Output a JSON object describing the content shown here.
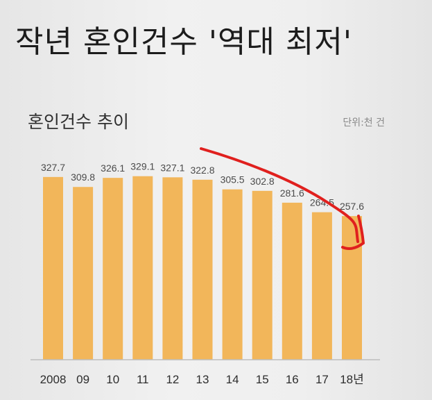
{
  "headline": "작년 혼인건수 '역대 최저'",
  "subtitle": "혼인건수 추이",
  "unit": "단위:천 건",
  "colors": {
    "bar": "#f2b65a",
    "axis": "#bdbdbd",
    "annotation": "#e0201e"
  },
  "chart_data": {
    "type": "bar",
    "title": "혼인건수 추이",
    "categories": [
      "2008",
      "09",
      "10",
      "11",
      "12",
      "13",
      "14",
      "15",
      "16",
      "17",
      "18년"
    ],
    "values": [
      327.7,
      309.8,
      326.1,
      329.1,
      327.1,
      322.8,
      305.5,
      302.8,
      281.6,
      264.5,
      257.6
    ],
    "value_labels": [
      "327.7",
      "309.8",
      "326.1",
      "329.1",
      "327.1",
      "322.8",
      "305.5",
      "302.8",
      "281.6",
      "264.5",
      "257.6"
    ],
    "ylim": [
      0,
      330
    ],
    "grid": false,
    "annotation": "hand-drawn red downward arrow over 2013–2018 bars"
  }
}
